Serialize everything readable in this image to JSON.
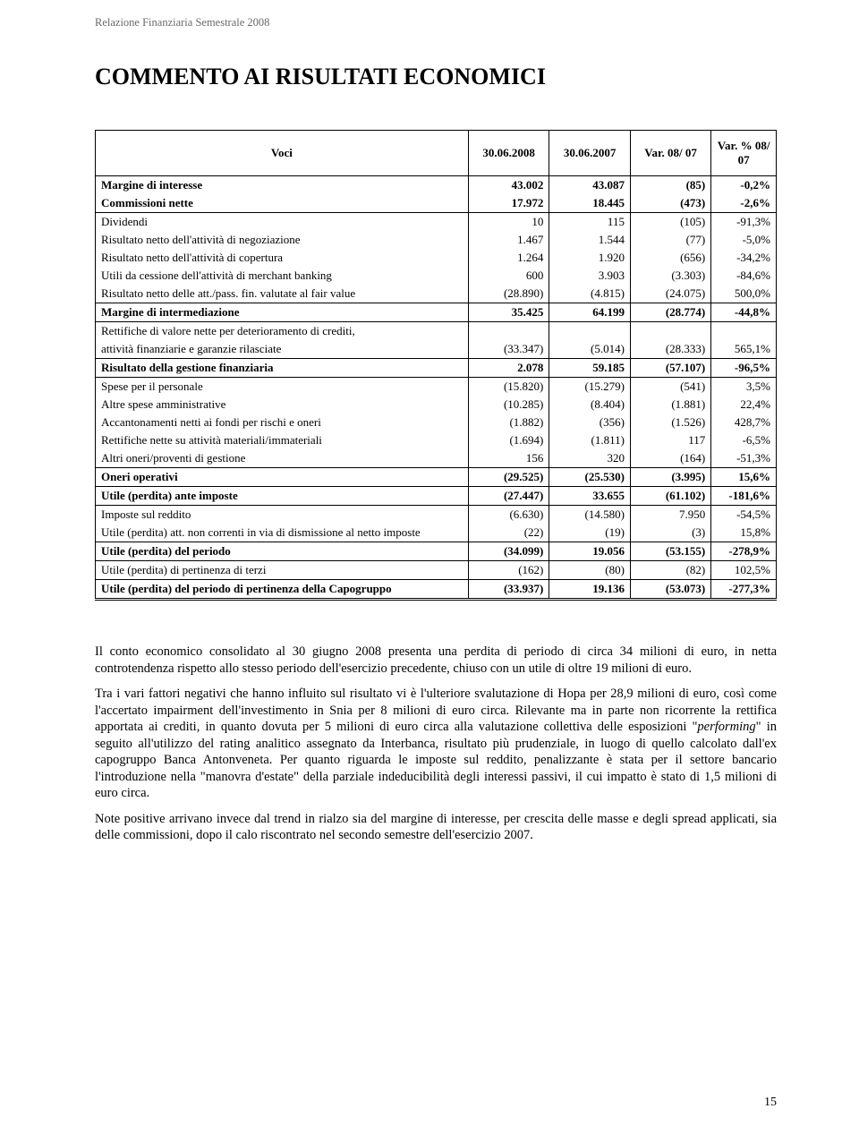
{
  "header": "Relazione Finanziaria Semestrale 2008",
  "title": "COMMENTO AI RISULTATI ECONOMICI",
  "page_number": "15",
  "style": {
    "header_color": "#6a6a6a",
    "text_color": "#000000",
    "border_color": "#000000",
    "title_fontsize": 26,
    "body_fontsize": 14.5,
    "table_fontsize": 13,
    "font_family": "Book Antiqua / Palatino serif"
  },
  "table": {
    "columns": [
      "Voci",
      "30.06.2008",
      "30.06.2007",
      "Var. 08/ 07",
      "Var. % 08/ 07"
    ],
    "rows": [
      {
        "label": "Margine di interesse",
        "c1": "43.002",
        "c2": "43.087",
        "c3": "(85)",
        "c4": "-0,2%",
        "bold": true,
        "sep_top": true
      },
      {
        "label": "Commissioni nette",
        "c1": "17.972",
        "c2": "18.445",
        "c3": "(473)",
        "c4": "-2,6%",
        "bold": true,
        "sep_bottom": true
      },
      {
        "label": "Dividendi",
        "c1": "10",
        "c2": "115",
        "c3": "(105)",
        "c4": "-91,3%"
      },
      {
        "label": "Risultato netto dell'attività di negoziazione",
        "c1": "1.467",
        "c2": "1.544",
        "c3": "(77)",
        "c4": "-5,0%"
      },
      {
        "label": "Risultato netto dell'attività di copertura",
        "c1": "1.264",
        "c2": "1.920",
        "c3": "(656)",
        "c4": "-34,2%"
      },
      {
        "label": "Utili da cessione dell'attività di merchant banking",
        "c1": "600",
        "c2": "3.903",
        "c3": "(3.303)",
        "c4": "-84,6%"
      },
      {
        "label": "Risultato netto delle att./pass. fin. valutate al fair value",
        "c1": "(28.890)",
        "c2": "(4.815)",
        "c3": "(24.075)",
        "c4": "500,0%",
        "sep_bottom": true
      },
      {
        "label": "Margine di intermediazione",
        "c1": "35.425",
        "c2": "64.199",
        "c3": "(28.774)",
        "c4": "-44,8%",
        "bold": true,
        "sep_bottom": true
      },
      {
        "label": "Rettifiche di valore nette per deterioramento di crediti,",
        "c1": "",
        "c2": "",
        "c3": "",
        "c4": ""
      },
      {
        "label": "attività finanziarie e  garanzie rilasciate",
        "c1": "(33.347)",
        "c2": "(5.014)",
        "c3": "(28.333)",
        "c4": "565,1%",
        "sep_bottom": true
      },
      {
        "label": "Risultato della gestione finanziaria",
        "c1": "2.078",
        "c2": "59.185",
        "c3": "(57.107)",
        "c4": "-96,5%",
        "bold": true,
        "sep_bottom": true
      },
      {
        "label": "Spese per il personale",
        "c1": "(15.820)",
        "c2": "(15.279)",
        "c3": "(541)",
        "c4": "3,5%"
      },
      {
        "label": "Altre spese amministrative",
        "c1": "(10.285)",
        "c2": "(8.404)",
        "c3": "(1.881)",
        "c4": "22,4%"
      },
      {
        "label": "Accantonamenti netti ai fondi per rischi e oneri",
        "c1": "(1.882)",
        "c2": "(356)",
        "c3": "(1.526)",
        "c4": "428,7%"
      },
      {
        "label": "Rettifiche nette su attività materiali/immateriali",
        "c1": "(1.694)",
        "c2": "(1.811)",
        "c3": "117",
        "c4": "-6,5%"
      },
      {
        "label": "Altri oneri/proventi di gestione",
        "c1": "156",
        "c2": "320",
        "c3": "(164)",
        "c4": "-51,3%",
        "sep_bottom": true
      },
      {
        "label": "Oneri operativi",
        "c1": "(29.525)",
        "c2": "(25.530)",
        "c3": "(3.995)",
        "c4": "15,6%",
        "bold": true,
        "sep_bottom": true
      },
      {
        "label": "Utile (perdita) ante imposte",
        "c1": "(27.447)",
        "c2": "33.655",
        "c3": "(61.102)",
        "c4": "-181,6%",
        "bold": true,
        "sep_bottom": true
      },
      {
        "label": "Imposte sul reddito",
        "c1": "(6.630)",
        "c2": "(14.580)",
        "c3": "7.950",
        "c4": "-54,5%"
      },
      {
        "label": "Utile (perdita) att. non correnti in via di dismissione al netto imposte",
        "c1": "(22)",
        "c2": "(19)",
        "c3": "(3)",
        "c4": "15,8%",
        "sep_bottom": true
      },
      {
        "label": "Utile (perdita) del periodo",
        "c1": "(34.099)",
        "c2": "19.056",
        "c3": "(53.155)",
        "c4": "-278,9%",
        "bold": true,
        "sep_bottom": true
      },
      {
        "label": "Utile (perdita) di pertinenza di terzi",
        "c1": "(162)",
        "c2": "(80)",
        "c3": "(82)",
        "c4": "102,5%",
        "sep_bottom": true
      },
      {
        "label": "Utile  (perdita) del periodo di pertinenza della Capogruppo",
        "c1": "(33.937)",
        "c2": "19.136",
        "c3": "(53.073)",
        "c4": "-277,3%",
        "bold": true,
        "double_bottom": true
      }
    ]
  },
  "paragraphs": [
    "Il conto economico consolidato al 30 giugno 2008 presenta una perdita di periodo di circa         34 milioni di euro, in netta controtendenza rispetto allo stesso periodo dell'esercizio precedente, chiuso con un utile di oltre 19  milioni di euro.",
    "Tra i vari fattori negativi che hanno influito sul risultato vi è l'ulteriore svalutazione di Hopa per 28,9 milioni di euro, così come l'accertato impairment dell'investimento in Snia per 8 milioni di euro circa. Rilevante ma in parte non ricorrente la rettifica apportata ai crediti, in quanto dovuta per        5 milioni di euro circa alla valutazione collettiva delle esposizioni \"<i>performing</i>\"   in seguito all'utilizzo del rating analitico assegnato da Interbanca, risultato più prudenziale, in luogo di quello calcolato dall'ex capogruppo Banca Antonveneta. Per quanto riguarda le imposte sul reddito, penalizzante è stata per il settore bancario l'introduzione nella \"manovra d'estate\" della parziale indeducibilità degli interessi passivi, il cui impatto è stato di 1,5 milioni di euro circa.",
    "Note positive arrivano invece dal trend in rialzo sia del margine di interesse, per crescita delle masse e degli spread applicati, sia delle commissioni, dopo il calo riscontrato nel secondo semestre dell'esercizio 2007."
  ]
}
